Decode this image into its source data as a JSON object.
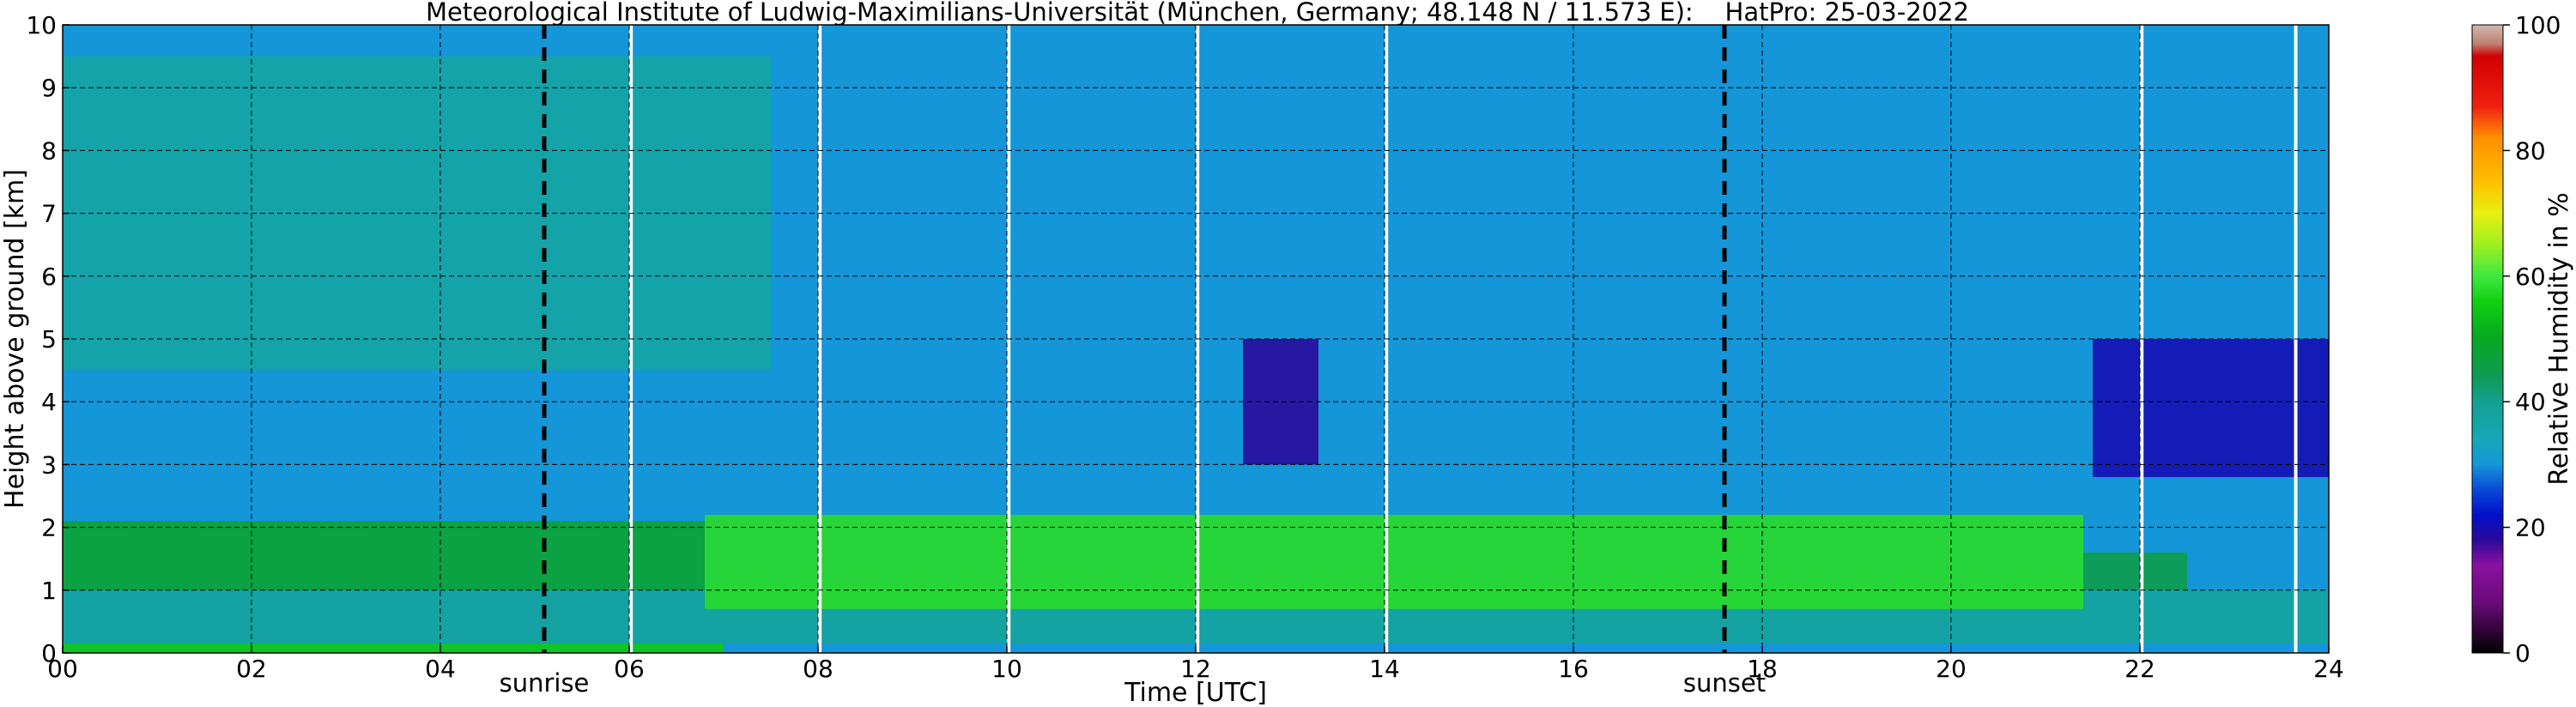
{
  "chart_data": {
    "type": "heatmap",
    "title": "Meteorological Institute of Ludwig-Maximilians-Universität (München, Germany; 48.148 N / 11.573 E):    HatPro: 25-03-2022",
    "xlabel": "Time [UTC]",
    "ylabel": "Height above ground [km]",
    "xlim": [
      0,
      24
    ],
    "ylim": [
      0,
      10
    ],
    "x_ticks": [
      "00",
      "02",
      "04",
      "06",
      "08",
      "10",
      "12",
      "14",
      "16",
      "18",
      "20",
      "22",
      "24"
    ],
    "y_ticks": [
      "0",
      "1",
      "2",
      "3",
      "4",
      "5",
      "6",
      "7",
      "8",
      "9",
      "10"
    ],
    "grid": true,
    "events": [
      {
        "label": "sunrise",
        "time": 5.1
      },
      {
        "label": "sunset",
        "time": 17.6
      }
    ],
    "gap_lines_time": [
      6.02,
      8.02,
      10.02,
      12.02,
      14.02,
      22.02,
      23.65
    ],
    "colorbar": {
      "label": "Relative Humidity in %",
      "range": [
        0,
        100
      ],
      "ticks": [
        "0",
        "20",
        "40",
        "60",
        "80",
        "100"
      ]
    },
    "layers": [
      {
        "height_range_km": [
          0,
          0.15
        ],
        "time_range": [
          0,
          7
        ],
        "rh_percent": 55
      },
      {
        "height_range_km": [
          0.15,
          1.0
        ],
        "time_range": [
          0,
          24
        ],
        "rh_percent": 38
      },
      {
        "height_range_km": [
          1.0,
          2.1
        ],
        "time_range": [
          0,
          6.8
        ],
        "rh_percent": 48
      },
      {
        "height_range_km": [
          0.7,
          2.2
        ],
        "time_range": [
          6.8,
          21.4
        ],
        "rh_percent": 58
      },
      {
        "height_range_km": [
          1.0,
          1.6
        ],
        "time_range": [
          21.4,
          22.5
        ],
        "rh_percent": 45
      },
      {
        "height_range_km": [
          2.3,
          10
        ],
        "time_range": [
          0,
          24
        ],
        "rh_percent": 30
      },
      {
        "height_range_km": [
          4.5,
          9.5
        ],
        "time_range": [
          0,
          7.5
        ],
        "rh_percent": 37
      },
      {
        "height_range_km": [
          3.0,
          5.0
        ],
        "time_range": [
          12.5,
          13.3
        ],
        "rh_percent": 18
      },
      {
        "height_range_km": [
          2.8,
          5.0
        ],
        "time_range": [
          21.5,
          24
        ],
        "rh_percent": 20
      }
    ]
  }
}
